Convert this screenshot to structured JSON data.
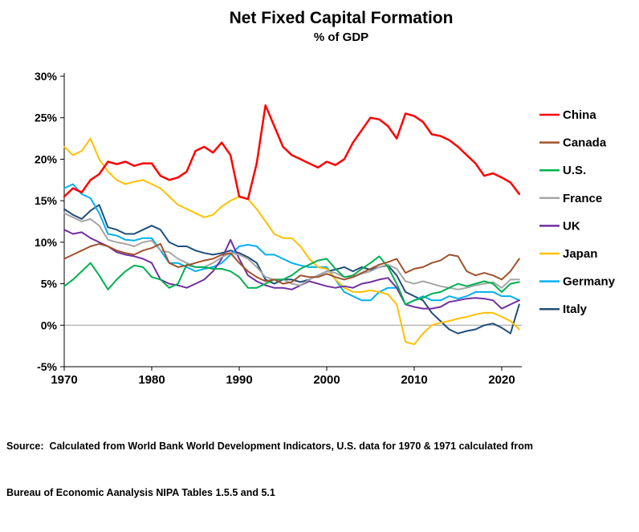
{
  "chart": {
    "title": "Net Fixed Capital Formation",
    "subtitle": "% of GDP"
  },
  "source": {
    "line1": "Source:  Calculated from World Bank World Development Indicators, U.S. data for 1970 & 1971 calculated from",
    "line2": "Bureau of Economic Aanalysis NIPA Tables 1.5.5 and 5.1"
  },
  "chart_data": {
    "type": "line",
    "title": "Net Fixed Capital Formation",
    "subtitle": "% of GDP",
    "ylabel": "",
    "xlabel": "",
    "ylim": [
      -5,
      30
    ],
    "grid": false,
    "zero_line": true,
    "legend_position": "right",
    "axis_color": "#000000",
    "zero_line_color": "#9a9a9a",
    "x": [
      1970,
      1971,
      1972,
      1973,
      1974,
      1975,
      1976,
      1977,
      1978,
      1979,
      1980,
      1981,
      1982,
      1983,
      1984,
      1985,
      1986,
      1987,
      1988,
      1989,
      1990,
      1991,
      1992,
      1993,
      1994,
      1995,
      1996,
      1997,
      1998,
      1999,
      2000,
      2001,
      2002,
      2003,
      2004,
      2005,
      2006,
      2007,
      2008,
      2009,
      2010,
      2011,
      2012,
      2013,
      2014,
      2015,
      2016,
      2017,
      2018,
      2019,
      2020,
      2021,
      2022
    ],
    "x_tick_values": [
      1970,
      1980,
      1990,
      2000,
      2010,
      2020
    ],
    "x_tick_labels": [
      "1970",
      "1980",
      "1990",
      "2000",
      "2010",
      "2020"
    ],
    "y_tick_values": [
      30,
      25,
      20,
      15,
      10,
      5,
      0,
      -5
    ],
    "y_tick_labels": [
      "30%",
      "25%",
      "20%",
      "15%",
      "10%",
      "5%",
      "0%",
      "-5%"
    ],
    "series": [
      {
        "name": "China",
        "color": "#FF0000",
        "values": [
          15.5,
          16.5,
          16.0,
          17.5,
          18.2,
          19.7,
          19.4,
          19.7,
          19.2,
          19.5,
          19.5,
          18.0,
          17.5,
          17.8,
          18.5,
          21.0,
          21.5,
          20.8,
          22.0,
          20.5,
          15.5,
          15.2,
          19.5,
          26.5,
          24.0,
          21.5,
          20.5,
          20.0,
          19.5,
          19.0,
          19.7,
          19.3,
          20.0,
          22.0,
          23.5,
          25.0,
          24.8,
          24.0,
          22.5,
          25.5,
          25.2,
          24.5,
          23.0,
          22.8,
          22.3,
          21.5,
          20.5,
          19.5,
          18.0,
          18.3,
          17.8,
          17.2,
          15.8
        ]
      },
      {
        "name": "Canada",
        "color": "#A0522D",
        "values": [
          8.0,
          8.5,
          9.0,
          9.5,
          9.8,
          9.5,
          9.0,
          8.7,
          8.5,
          9.0,
          9.3,
          9.8,
          7.5,
          7.0,
          7.2,
          7.5,
          7.8,
          8.0,
          8.5,
          8.7,
          7.5,
          6.5,
          5.8,
          5.3,
          5.5,
          5.0,
          5.2,
          6.0,
          5.8,
          5.8,
          6.2,
          5.8,
          5.5,
          5.8,
          6.3,
          6.8,
          7.3,
          7.6,
          8.0,
          6.3,
          6.8,
          7.0,
          7.5,
          7.8,
          8.5,
          8.3,
          6.5,
          6.0,
          6.3,
          6.0,
          5.5,
          6.5,
          8.0
        ]
      },
      {
        "name": "U.S.",
        "color": "#00B050",
        "values": [
          4.7,
          5.5,
          6.5,
          7.5,
          6.0,
          4.3,
          5.5,
          6.5,
          7.2,
          7.0,
          5.8,
          5.5,
          4.5,
          5.0,
          7.3,
          7.0,
          7.0,
          6.8,
          6.8,
          6.5,
          5.8,
          4.5,
          4.5,
          5.0,
          5.5,
          5.5,
          6.0,
          6.8,
          7.3,
          7.8,
          8.0,
          6.8,
          5.8,
          6.0,
          6.8,
          7.5,
          8.3,
          7.0,
          5.0,
          2.5,
          3.0,
          3.3,
          3.8,
          4.0,
          4.5,
          5.0,
          4.7,
          5.0,
          5.3,
          5.0,
          4.0,
          5.0,
          5.2
        ]
      },
      {
        "name": "France",
        "color": "#A6A6A6",
        "values": [
          13.5,
          13.0,
          12.5,
          12.8,
          12.0,
          10.3,
          10.0,
          9.8,
          9.5,
          10.0,
          10.2,
          9.0,
          8.8,
          8.0,
          7.5,
          7.0,
          7.0,
          7.5,
          8.2,
          8.7,
          8.5,
          8.0,
          7.0,
          5.8,
          5.5,
          5.5,
          5.0,
          4.8,
          5.5,
          6.0,
          6.5,
          6.3,
          5.8,
          5.8,
          6.2,
          6.5,
          7.0,
          7.3,
          6.8,
          5.3,
          5.0,
          5.3,
          5.0,
          4.7,
          4.5,
          4.3,
          4.5,
          4.8,
          5.0,
          5.2,
          4.5,
          5.5,
          5.5
        ]
      },
      {
        "name": "UK",
        "color": "#7030A0",
        "values": [
          11.5,
          11.0,
          11.2,
          10.5,
          10.0,
          9.5,
          8.8,
          8.5,
          8.3,
          8.0,
          7.5,
          5.5,
          5.0,
          4.8,
          4.5,
          5.0,
          5.5,
          6.5,
          8.0,
          10.3,
          8.0,
          6.0,
          5.3,
          4.8,
          4.5,
          4.5,
          4.3,
          4.8,
          5.3,
          5.0,
          4.7,
          4.5,
          4.7,
          4.5,
          5.0,
          5.2,
          5.5,
          5.7,
          4.5,
          2.5,
          2.2,
          2.0,
          2.0,
          2.2,
          2.8,
          3.0,
          3.2,
          3.3,
          3.2,
          3.0,
          2.0,
          2.5,
          3.0
        ]
      },
      {
        "name": "Japan",
        "color": "#FFC000",
        "values": [
          21.5,
          20.5,
          21.0,
          22.5,
          20.0,
          18.5,
          17.5,
          17.0,
          17.3,
          17.5,
          17.0,
          16.5,
          15.5,
          14.5,
          14.0,
          13.5,
          13.0,
          13.3,
          14.3,
          15.0,
          15.5,
          15.2,
          14.0,
          12.5,
          11.0,
          10.5,
          10.5,
          9.5,
          8.0,
          7.0,
          6.8,
          5.5,
          4.5,
          4.0,
          4.0,
          4.2,
          4.0,
          3.7,
          2.5,
          -2.0,
          -2.3,
          -1.0,
          0.0,
          0.3,
          0.5,
          0.8,
          1.0,
          1.3,
          1.5,
          1.5,
          1.0,
          0.5,
          -0.5
        ]
      },
      {
        "name": "Germany",
        "color": "#00B0F0",
        "values": [
          16.5,
          17.0,
          15.8,
          15.3,
          13.5,
          11.0,
          10.8,
          10.3,
          10.2,
          10.5,
          10.5,
          9.0,
          7.5,
          7.5,
          7.0,
          6.5,
          6.8,
          7.0,
          7.5,
          8.5,
          9.5,
          9.7,
          9.5,
          8.5,
          8.5,
          8.0,
          7.5,
          7.2,
          7.0,
          7.0,
          7.0,
          5.5,
          4.0,
          3.5,
          3.0,
          3.0,
          4.0,
          4.5,
          4.5,
          2.5,
          3.0,
          3.5,
          3.0,
          3.0,
          3.5,
          3.2,
          3.5,
          4.0,
          4.0,
          4.0,
          3.5,
          3.5,
          3.0
        ]
      },
      {
        "name": "Italy",
        "color": "#1F4E79",
        "values": [
          14.0,
          13.3,
          12.8,
          13.8,
          14.5,
          11.8,
          11.5,
          11.0,
          11.0,
          11.5,
          12.0,
          11.5,
          10.0,
          9.5,
          9.5,
          9.0,
          8.7,
          8.5,
          8.7,
          9.0,
          8.7,
          8.2,
          7.5,
          5.5,
          5.0,
          5.5,
          5.5,
          5.2,
          5.5,
          6.0,
          6.5,
          6.7,
          7.0,
          6.5,
          7.0,
          6.7,
          7.0,
          7.2,
          6.0,
          4.0,
          3.5,
          3.0,
          1.5,
          0.5,
          -0.5,
          -1.0,
          -0.7,
          -0.5,
          0.0,
          0.2,
          -0.3,
          -1.0,
          2.5
        ]
      }
    ]
  }
}
